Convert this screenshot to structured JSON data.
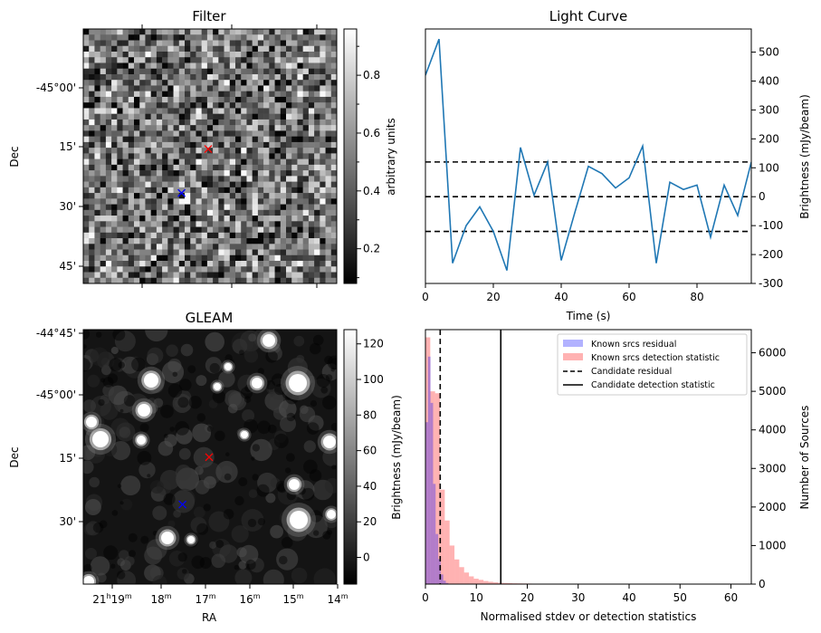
{
  "chart_data": [
    {
      "type": "heatmap",
      "title": "Filter",
      "xlabel": "",
      "ylabel": "Dec",
      "y_ticks": [
        "-45°00'",
        "15'",
        "30'",
        "45'"
      ],
      "x_ticks": [],
      "colorbar": {
        "label": "arbitrary units",
        "ticks": [
          "0.2",
          "0.4",
          "0.6",
          "0.8"
        ],
        "range": [
          0.08,
          0.96
        ],
        "colormap": "gray"
      },
      "markers": [
        {
          "name": "candidate",
          "symbol": "x",
          "color": "#ff0000",
          "ra_min": 17.0,
          "dec_arcmin": 15.6
        },
        {
          "name": "reference",
          "symbol": "x",
          "color": "#0000ff",
          "ra_min": 17.6,
          "dec_arcmin": 26.8
        }
      ]
    },
    {
      "type": "line",
      "title": "Light Curve",
      "xlabel": "Time (s)",
      "ylabel": "Brightness (mJy/beam)",
      "xlim": [
        0,
        96
      ],
      "ylim": [
        -300,
        580
      ],
      "x_ticks": [
        "0",
        "20",
        "40",
        "60",
        "80"
      ],
      "y_ticks": [
        "-300",
        "-200",
        "-100",
        "0",
        "100",
        "200",
        "300",
        "400",
        "500"
      ],
      "series": [
        {
          "color": "#1f77b4",
          "x": [
            0,
            4,
            8,
            12,
            16,
            20,
            24,
            28,
            32,
            36,
            40,
            44,
            48,
            52,
            56,
            60,
            64,
            68,
            72,
            76,
            80,
            84,
            88,
            92,
            96
          ],
          "y": [
            420,
            545,
            -230,
            -100,
            -35,
            -120,
            -255,
            170,
            5,
            120,
            -220,
            -55,
            105,
            80,
            30,
            65,
            175,
            -230,
            50,
            25,
            40,
            -140,
            40,
            -65,
            120
          ]
        }
      ],
      "hlines": [
        {
          "y": 120,
          "style": "dashed",
          "color": "#000000"
        },
        {
          "y": 0,
          "style": "dashed",
          "color": "#000000"
        },
        {
          "y": -120,
          "style": "dashed",
          "color": "#000000"
        }
      ]
    },
    {
      "type": "heatmap",
      "title": "GLEAM",
      "xlabel": "RA",
      "ylabel": "Dec",
      "y_ticks": [
        "-44°45'",
        "-45°00'",
        "15'",
        "30'"
      ],
      "x_ticks": [
        "21h19m",
        "18m",
        "17m",
        "16m",
        "15m",
        "14m"
      ],
      "colorbar": {
        "label": "Brightness (mJy/beam)",
        "ticks": [
          "0",
          "20",
          "40",
          "60",
          "80",
          "100",
          "120"
        ],
        "range": [
          -15,
          128
        ],
        "colormap": "gray"
      },
      "markers": [
        {
          "name": "candidate",
          "symbol": "x",
          "color": "#ff0000",
          "ra_min": 17.0,
          "dec_arcmin": 15.6
        },
        {
          "name": "reference",
          "symbol": "x",
          "color": "#0000ff",
          "ra_min": 17.6,
          "dec_arcmin": 26.8
        }
      ]
    },
    {
      "type": "bar",
      "title": "",
      "xlabel": "Normalised stdev or detection statistics",
      "ylabel": "Number of Sources",
      "xlim": [
        0,
        64
      ],
      "ylim": [
        0,
        6600
      ],
      "x_ticks": [
        "0",
        "10",
        "20",
        "30",
        "40",
        "50",
        "60"
      ],
      "y_ticks": [
        "0",
        "1000",
        "2000",
        "3000",
        "4000",
        "5000",
        "6000"
      ],
      "legend": {
        "position": "top-right",
        "entries": [
          "Known srcs residual",
          "Known srcs detection statistic",
          "Candidate residual",
          "Candidate detection statistic"
        ]
      },
      "series": [
        {
          "name": "Known srcs residual",
          "color": "#0000ff",
          "opacity": 0.3,
          "bin_width": 0.5,
          "bin_start": 0,
          "values": [
            4200,
            5900,
            4700,
            2600,
            1300,
            650,
            250,
            90,
            30,
            10
          ]
        },
        {
          "name": "Known srcs detection statistic",
          "color": "#ff0000",
          "opacity": 0.3,
          "bin_width": 0.95,
          "bin_start": 0,
          "values": [
            6400,
            5000,
            4950,
            2450,
            1650,
            1000,
            640,
            440,
            300,
            200,
            140,
            110,
            80,
            60,
            45,
            35,
            30,
            25,
            20,
            18,
            16,
            14,
            12,
            11,
            10,
            9,
            8,
            8,
            7,
            7,
            6,
            6,
            5,
            5,
            5,
            4,
            4,
            4,
            3,
            3,
            3,
            3,
            3,
            2,
            2,
            2,
            2,
            2,
            2,
            2,
            1,
            1,
            1,
            1,
            1,
            1,
            1,
            1,
            1,
            1,
            1,
            1,
            1,
            1,
            1
          ]
        }
      ],
      "vlines": [
        {
          "name": "Candidate residual",
          "x": 2.9,
          "style": "dashed",
          "color": "#000000"
        },
        {
          "name": "Candidate detection statistic",
          "x": 14.8,
          "style": "solid",
          "color": "#000000"
        }
      ]
    }
  ]
}
